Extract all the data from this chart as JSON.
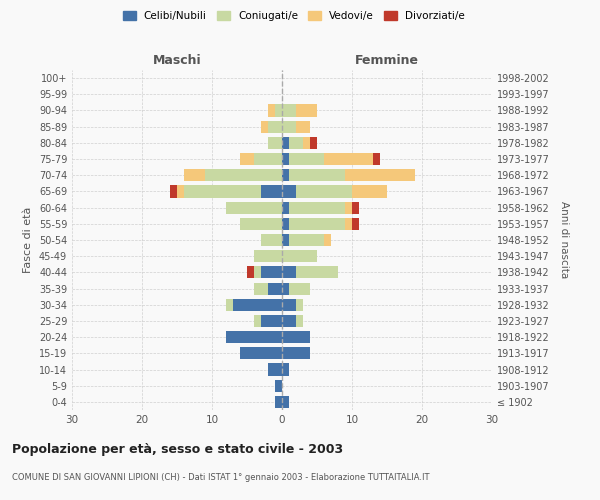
{
  "age_groups": [
    "100+",
    "95-99",
    "90-94",
    "85-89",
    "80-84",
    "75-79",
    "70-74",
    "65-69",
    "60-64",
    "55-59",
    "50-54",
    "45-49",
    "40-44",
    "35-39",
    "30-34",
    "25-29",
    "20-24",
    "15-19",
    "10-14",
    "5-9",
    "0-4"
  ],
  "birth_years": [
    "≤ 1902",
    "1903-1907",
    "1908-1912",
    "1913-1917",
    "1918-1922",
    "1923-1927",
    "1928-1932",
    "1933-1937",
    "1938-1942",
    "1943-1947",
    "1948-1952",
    "1953-1957",
    "1958-1962",
    "1963-1967",
    "1968-1972",
    "1973-1977",
    "1978-1982",
    "1983-1987",
    "1988-1992",
    "1993-1997",
    "1998-2002"
  ],
  "maschi": {
    "celibi": [
      0,
      0,
      0,
      0,
      0,
      0,
      0,
      3,
      0,
      0,
      0,
      0,
      3,
      2,
      7,
      3,
      8,
      6,
      2,
      1,
      1
    ],
    "coniugati": [
      0,
      0,
      1,
      2,
      2,
      4,
      11,
      11,
      8,
      6,
      3,
      4,
      1,
      2,
      1,
      1,
      0,
      0,
      0,
      0,
      0
    ],
    "vedovi": [
      0,
      0,
      1,
      1,
      0,
      2,
      3,
      1,
      0,
      0,
      0,
      0,
      0,
      0,
      0,
      0,
      0,
      0,
      0,
      0,
      0
    ],
    "divorziati": [
      0,
      0,
      0,
      0,
      0,
      0,
      0,
      1,
      0,
      0,
      0,
      0,
      1,
      0,
      0,
      0,
      0,
      0,
      0,
      0,
      0
    ]
  },
  "femmine": {
    "nubili": [
      0,
      0,
      0,
      0,
      1,
      1,
      1,
      2,
      1,
      1,
      1,
      0,
      2,
      1,
      2,
      2,
      4,
      4,
      1,
      0,
      1
    ],
    "coniugate": [
      0,
      0,
      2,
      2,
      2,
      5,
      8,
      8,
      8,
      8,
      5,
      5,
      6,
      3,
      1,
      1,
      0,
      0,
      0,
      0,
      0
    ],
    "vedove": [
      0,
      0,
      3,
      2,
      1,
      7,
      10,
      5,
      1,
      1,
      1,
      0,
      0,
      0,
      0,
      0,
      0,
      0,
      0,
      0,
      0
    ],
    "divorziate": [
      0,
      0,
      0,
      0,
      1,
      1,
      0,
      0,
      1,
      1,
      0,
      0,
      0,
      0,
      0,
      0,
      0,
      0,
      0,
      0,
      0
    ]
  },
  "colors": {
    "celibi": "#4472a8",
    "coniugati": "#c8d9a2",
    "vedovi": "#f5c87a",
    "divorziati": "#c0392b"
  },
  "xlim": 30,
  "title": "Popolazione per età, sesso e stato civile - 2003",
  "subtitle": "COMUNE DI SAN GIOVANNI LIPIONI (CH) - Dati ISTAT 1° gennaio 2003 - Elaborazione TUTTAITALIA.IT",
  "ylabel_left": "Fasce di età",
  "ylabel_right": "Anni di nascita",
  "xlabel_maschi": "Maschi",
  "xlabel_femmine": "Femmine",
  "bg_color": "#f9f9f9",
  "grid_color": "#cccccc"
}
